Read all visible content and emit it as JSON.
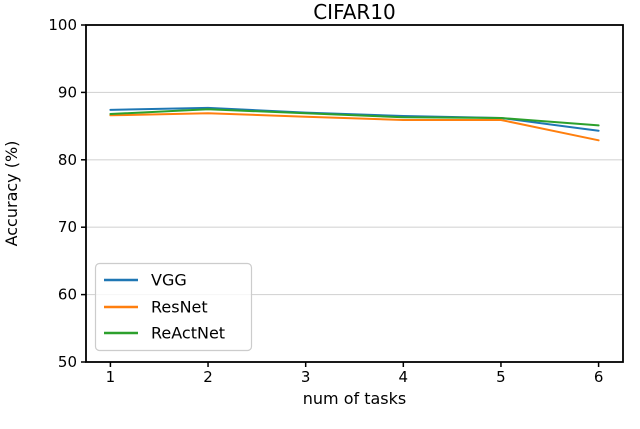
{
  "title": "CIFAR10",
  "chart_data": {
    "type": "line",
    "title": "CIFAR10",
    "xlabel": "num of tasks",
    "ylabel": "Accuracy (%)",
    "x": [
      1,
      2,
      3,
      4,
      5,
      6
    ],
    "series": [
      {
        "name": "VGG",
        "color": "#1f77b4",
        "values": [
          87.4,
          87.7,
          87.0,
          86.5,
          86.2,
          84.3
        ]
      },
      {
        "name": "ResNet",
        "color": "#ff7f0e",
        "values": [
          86.6,
          86.9,
          86.4,
          85.9,
          85.9,
          82.9
        ]
      },
      {
        "name": "ReActNet",
        "color": "#2ca02c",
        "values": [
          86.8,
          87.5,
          86.9,
          86.3,
          86.2,
          85.1
        ]
      }
    ],
    "xlim": [
      0.75,
      6.25
    ],
    "ylim": [
      50,
      100
    ],
    "xticks": [
      "1",
      "2",
      "3",
      "4",
      "5",
      "6"
    ],
    "xtick_values": [
      1,
      2,
      3,
      4,
      5,
      6
    ],
    "yticks": [
      "50",
      "60",
      "70",
      "80",
      "90",
      "100"
    ],
    "ytick_values": [
      50,
      60,
      70,
      80,
      90,
      100
    ],
    "grid": "horizontal",
    "grid_color": "#d5d5d5",
    "spine_color": "#000000",
    "legend_position": "lower-left"
  }
}
